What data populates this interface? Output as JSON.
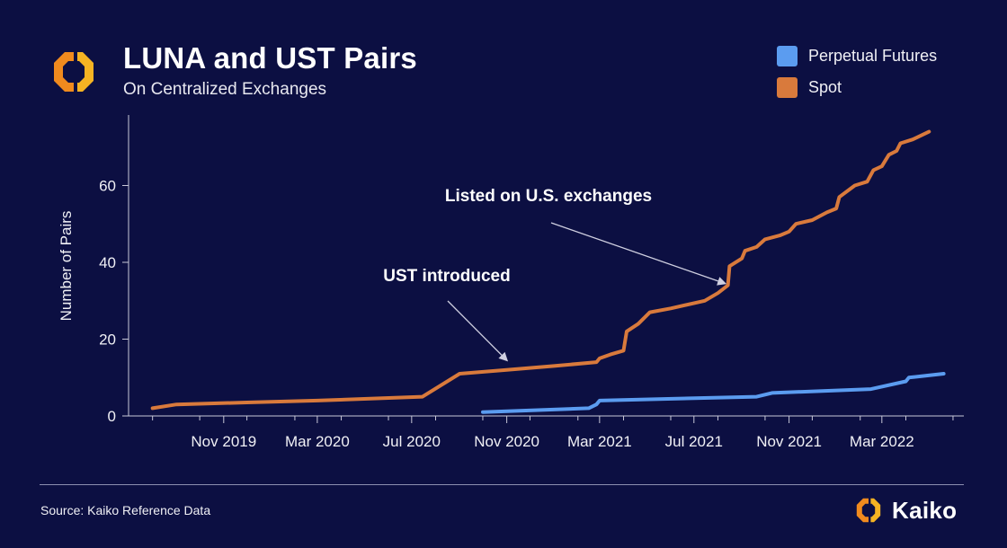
{
  "header": {
    "title": "LUNA and UST Pairs",
    "subtitle": "On Centralized Exchanges"
  },
  "legend": [
    {
      "label": "Perpetual Futures",
      "color": "#5b9cf0"
    },
    {
      "label": "Spot",
      "color": "#d97a3c"
    }
  ],
  "footer": {
    "source": "Source: Kaiko Reference Data",
    "brand": "Kaiko"
  },
  "icons": {
    "header_logo": "kaiko-logo-icon",
    "footer_logo": "kaiko-logo-icon"
  },
  "chart_data": {
    "type": "line",
    "ylabel": "Number of Pairs",
    "xlabel": "",
    "ylim": [
      0,
      75
    ],
    "y_ticks": [
      0,
      20,
      40,
      60
    ],
    "xlim": [
      "2019-07-01",
      "2022-06-15"
    ],
    "x_ticks": [
      {
        "date": "2019-11-01",
        "label": "Nov 2019"
      },
      {
        "date": "2020-03-01",
        "label": "Mar 2020"
      },
      {
        "date": "2020-07-01",
        "label": "Jul 2020"
      },
      {
        "date": "2020-11-01",
        "label": "Nov 2020"
      },
      {
        "date": "2021-03-01",
        "label": "Mar 2021"
      },
      {
        "date": "2021-07-01",
        "label": "Jul 2021"
      },
      {
        "date": "2021-11-01",
        "label": "Nov 2021"
      },
      {
        "date": "2022-03-01",
        "label": "Mar 2022"
      }
    ],
    "series": [
      {
        "name": "Spot",
        "color": "#d97a3c",
        "points": [
          [
            "2019-08-01",
            2
          ],
          [
            "2019-09-01",
            3
          ],
          [
            "2019-12-01",
            3.5
          ],
          [
            "2020-03-01",
            4
          ],
          [
            "2020-07-15",
            5
          ],
          [
            "2020-09-01",
            11
          ],
          [
            "2020-11-01",
            12
          ],
          [
            "2021-01-01",
            13
          ],
          [
            "2021-02-25",
            14
          ],
          [
            "2021-03-01",
            15
          ],
          [
            "2021-03-15",
            16
          ],
          [
            "2021-04-01",
            17
          ],
          [
            "2021-04-05",
            22
          ],
          [
            "2021-04-20",
            24
          ],
          [
            "2021-05-05",
            27
          ],
          [
            "2021-06-01",
            28
          ],
          [
            "2021-07-15",
            30
          ],
          [
            "2021-08-01",
            32
          ],
          [
            "2021-08-14",
            34
          ],
          [
            "2021-08-16",
            39
          ],
          [
            "2021-09-01",
            41
          ],
          [
            "2021-09-05",
            43
          ],
          [
            "2021-09-20",
            44
          ],
          [
            "2021-10-01",
            46
          ],
          [
            "2021-10-20",
            47
          ],
          [
            "2021-11-01",
            48
          ],
          [
            "2021-11-10",
            50
          ],
          [
            "2021-12-01",
            51
          ],
          [
            "2021-12-20",
            53
          ],
          [
            "2022-01-01",
            54
          ],
          [
            "2022-01-05",
            57
          ],
          [
            "2022-01-25",
            60
          ],
          [
            "2022-02-10",
            61
          ],
          [
            "2022-02-18",
            64
          ],
          [
            "2022-03-01",
            65
          ],
          [
            "2022-03-10",
            68
          ],
          [
            "2022-03-20",
            69
          ],
          [
            "2022-03-25",
            71
          ],
          [
            "2022-04-10",
            72
          ],
          [
            "2022-05-01",
            74
          ]
        ]
      },
      {
        "name": "Perpetual Futures",
        "color": "#5b9cf0",
        "points": [
          [
            "2020-10-01",
            1
          ],
          [
            "2021-02-15",
            2
          ],
          [
            "2021-02-25",
            3
          ],
          [
            "2021-03-01",
            4
          ],
          [
            "2021-09-20",
            5
          ],
          [
            "2021-10-10",
            6
          ],
          [
            "2022-02-15",
            7
          ],
          [
            "2022-04-01",
            9
          ],
          [
            "2022-04-05",
            10
          ],
          [
            "2022-05-20",
            11
          ]
        ]
      }
    ],
    "annotations": [
      {
        "text": "UST introduced",
        "target": [
          "2020-11-01",
          14.5
        ]
      },
      {
        "text": "Listed on U.S. exchanges",
        "target": [
          "2021-08-10",
          34.5
        ]
      }
    ]
  }
}
